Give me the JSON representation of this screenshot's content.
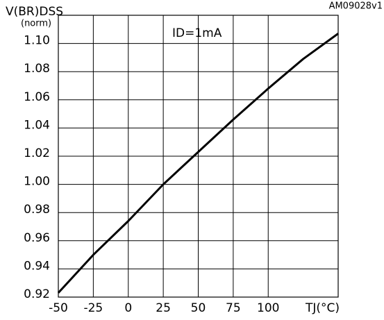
{
  "chart_data": {
    "type": "line",
    "code": "AM09028v1",
    "y_label": "V(BR)DSS",
    "y_label_unit": "(norm)",
    "x_label": "TJ(°C)",
    "annotation": "ID=1mA",
    "x": [
      -50,
      -25,
      0,
      25,
      50,
      75,
      100,
      125,
      150
    ],
    "series": [
      {
        "color": "#000000",
        "values": [
          0.923,
          0.95,
          0.974,
          1.0,
          1.023,
          1.046,
          1.068,
          1.089,
          1.107
        ]
      }
    ],
    "xlim": [
      -50,
      150
    ],
    "xticks": [
      -50,
      -25,
      0,
      25,
      50,
      75,
      100
    ],
    "ylim": [
      0.92,
      1.12
    ],
    "yticks": [
      {
        "value": 0.92,
        "label": "0.92"
      },
      {
        "value": 0.94,
        "label": "0.94"
      },
      {
        "value": 0.96,
        "label": "0.96"
      },
      {
        "value": 0.98,
        "label": "0.98"
      },
      {
        "value": 1.0,
        "label": "1.00"
      },
      {
        "value": 1.02,
        "label": "1.02"
      },
      {
        "value": 1.04,
        "label": "1.04"
      },
      {
        "value": 1.06,
        "label": "1.06"
      },
      {
        "value": 1.08,
        "label": "1.08"
      },
      {
        "value": 1.1,
        "label": "1.10"
      }
    ],
    "grid": true
  }
}
